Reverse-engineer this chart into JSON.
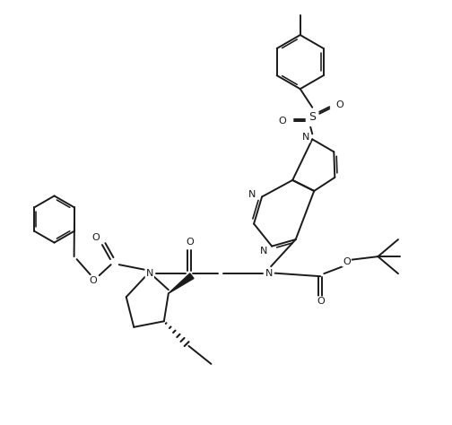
{
  "background_color": "#ffffff",
  "line_color": "#1a1a1a",
  "lw": 1.4,
  "figsize": [
    5.04,
    4.74
  ],
  "dpi": 100,
  "xlim": [
    0,
    10
  ],
  "ylim": [
    0,
    9.4
  ]
}
